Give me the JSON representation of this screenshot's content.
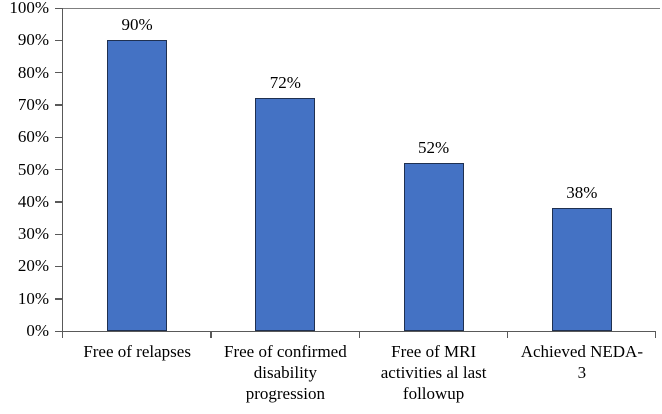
{
  "chart_data": {
    "type": "bar",
    "title": "",
    "xlabel": "",
    "ylabel": "",
    "categories": [
      "Free of relapses",
      "Free of confirmed disability progression",
      "Free of MRI activities al last followup",
      "Achieved NEDA-3"
    ],
    "category_label_lines": [
      [
        "Free of relapses"
      ],
      [
        "Free of confirmed",
        "disability",
        "progression"
      ],
      [
        "Free of MRI",
        "activities al last",
        "followup"
      ],
      [
        "Achieved NEDA-",
        "3"
      ]
    ],
    "values": [
      90,
      72,
      52,
      38
    ],
    "value_labels": [
      "90%",
      "72%",
      "52%",
      "38%"
    ],
    "yticks": [
      0,
      10,
      20,
      30,
      40,
      50,
      60,
      70,
      80,
      90,
      100
    ],
    "ytick_labels": [
      "0%",
      "10%",
      "20%",
      "30%",
      "40%",
      "50%",
      "60%",
      "70%",
      "80%",
      "90%",
      "100%"
    ],
    "ylim": [
      0,
      100
    ],
    "legend_position": "none",
    "grid": "top-border-only",
    "colors": {
      "bar_fill": "#4472c4",
      "bar_border": "#1f3050",
      "axis": "#595959",
      "text": "#000000",
      "background": "#ffffff"
    }
  }
}
